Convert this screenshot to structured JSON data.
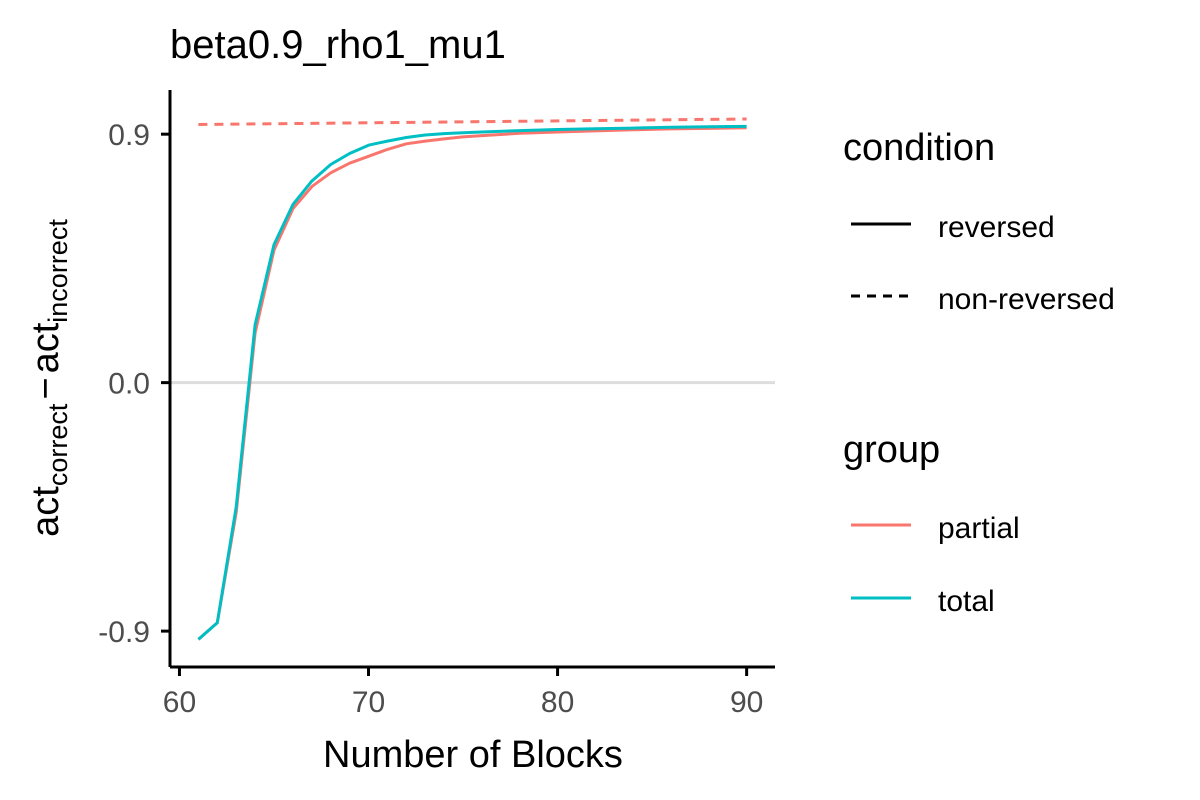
{
  "chart_data": {
    "type": "line",
    "title": "beta0.9_rho1_mu1",
    "xlabel": "Number of Blocks",
    "ylabel": {
      "main1": "act",
      "sub1": "correct",
      "minus": "−",
      "main2": "act",
      "sub2": "incorrect"
    },
    "xlim": [
      59.5,
      91.5
    ],
    "ylim": [
      -1.03,
      1.06
    ],
    "xticks": [
      60,
      70,
      80,
      90
    ],
    "xtick_labels": [
      "60",
      "70",
      "80",
      "90"
    ],
    "yticks": [
      -0.9,
      0.0,
      0.9
    ],
    "ytick_labels": [
      "-0.9",
      "0.0",
      "0.9"
    ],
    "reference_line_y": 0.0,
    "grid": false,
    "legend": {
      "placement": "right",
      "sections": [
        {
          "title": "condition",
          "items": [
            {
              "label": "reversed",
              "dash": "solid",
              "color": "#000000"
            },
            {
              "label": "non-reversed",
              "dash": "dashed",
              "color": "#000000"
            }
          ]
        },
        {
          "title": "group",
          "items": [
            {
              "label": "partial",
              "dash": "solid",
              "color": "#F8766D"
            },
            {
              "label": "total",
              "dash": "solid",
              "color": "#00BFC4"
            }
          ]
        }
      ]
    },
    "series": [
      {
        "group": "partial",
        "condition": "non-reversed",
        "color": "#F8766D",
        "dash": "dashed",
        "x": [
          61,
          90
        ],
        "y": [
          0.935,
          0.955
        ]
      },
      {
        "group": "partial",
        "condition": "reversed",
        "color": "#F8766D",
        "dash": "solid",
        "x": [
          61,
          62,
          63,
          64,
          65,
          66,
          67,
          68,
          69,
          70,
          71,
          72,
          73,
          74,
          75,
          76,
          78,
          80,
          82,
          84,
          86,
          88,
          90
        ],
        "y": [
          -0.93,
          -0.87,
          -0.47,
          0.18,
          0.48,
          0.63,
          0.71,
          0.76,
          0.795,
          0.82,
          0.845,
          0.865,
          0.875,
          0.883,
          0.89,
          0.895,
          0.903,
          0.908,
          0.912,
          0.916,
          0.919,
          0.921,
          0.923
        ]
      },
      {
        "group": "total",
        "condition": "reversed",
        "color": "#00BFC4",
        "dash": "solid",
        "x": [
          61,
          62,
          63,
          64,
          65,
          66,
          67,
          68,
          69,
          70,
          71,
          72,
          73,
          74,
          75,
          76,
          78,
          80,
          82,
          84,
          86,
          88,
          90
        ],
        "y": [
          -0.93,
          -0.87,
          -0.45,
          0.21,
          0.5,
          0.645,
          0.73,
          0.79,
          0.83,
          0.86,
          0.875,
          0.888,
          0.897,
          0.902,
          0.905,
          0.908,
          0.913,
          0.917,
          0.92,
          0.922,
          0.925,
          0.927,
          0.928
        ]
      }
    ]
  }
}
